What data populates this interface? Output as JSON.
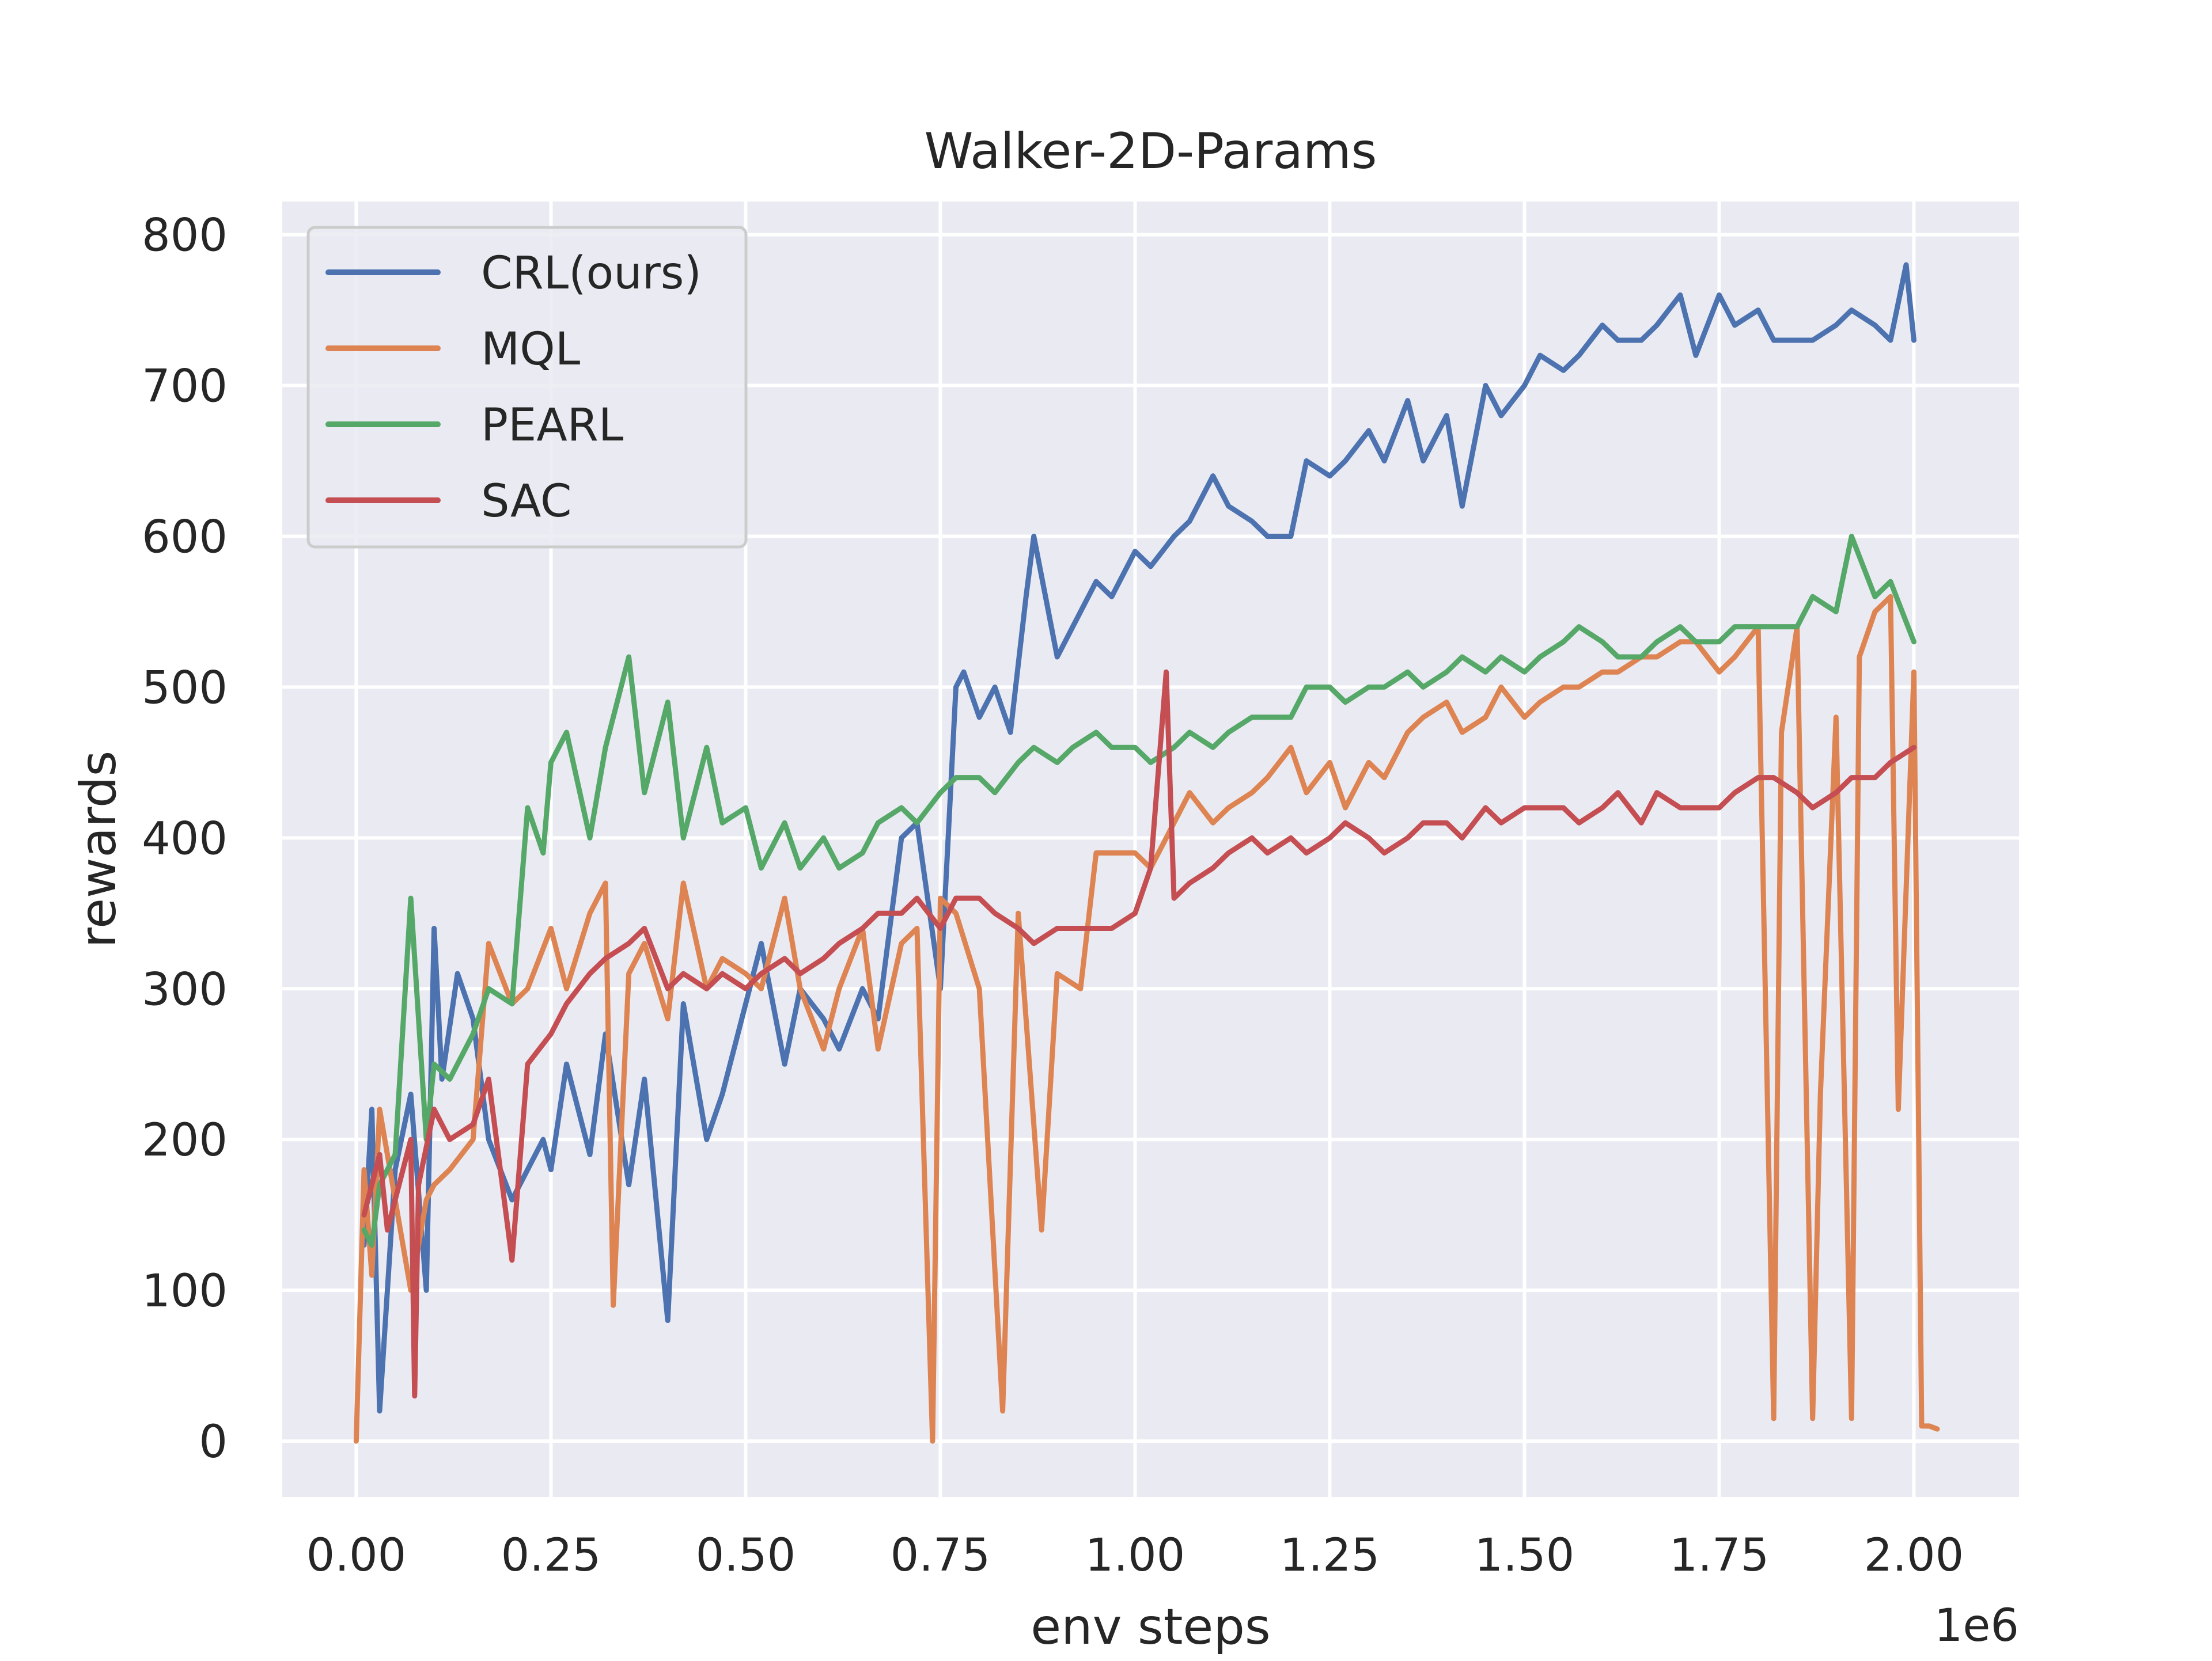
{
  "chart_data": {
    "type": "line",
    "title": "Walker-2D-Params",
    "xlabel": "env steps",
    "ylabel": "rewards",
    "x_offset_label": "1e6",
    "xlim": [
      -0.095,
      2.135
    ],
    "ylim": [
      -37,
      822
    ],
    "x_ticks": [
      0.0,
      0.25,
      0.5,
      0.75,
      1.0,
      1.25,
      1.5,
      1.75,
      2.0
    ],
    "x_tick_labels": [
      "0.00",
      "0.25",
      "0.50",
      "0.75",
      "1.00",
      "1.25",
      "1.50",
      "1.75",
      "2.00"
    ],
    "y_ticks": [
      0,
      100,
      200,
      300,
      400,
      500,
      600,
      700,
      800
    ],
    "y_tick_labels": [
      "0",
      "100",
      "200",
      "300",
      "400",
      "500",
      "600",
      "700",
      "800"
    ],
    "grid": true,
    "legend_position": "upper-left",
    "background": "#eaeaf2",
    "series": [
      {
        "name": "CRL(ours)",
        "color": "#4c72b0",
        "x": [
          0.01,
          0.02,
          0.03,
          0.05,
          0.07,
          0.09,
          0.1,
          0.11,
          0.13,
          0.15,
          0.17,
          0.2,
          0.22,
          0.24,
          0.25,
          0.27,
          0.3,
          0.32,
          0.35,
          0.37,
          0.4,
          0.42,
          0.45,
          0.47,
          0.5,
          0.52,
          0.55,
          0.57,
          0.6,
          0.62,
          0.65,
          0.67,
          0.7,
          0.72,
          0.75,
          0.77,
          0.78,
          0.8,
          0.82,
          0.84,
          0.86,
          0.87,
          0.9,
          0.92,
          0.95,
          0.97,
          1.0,
          1.02,
          1.05,
          1.07,
          1.1,
          1.12,
          1.15,
          1.17,
          1.2,
          1.22,
          1.25,
          1.27,
          1.3,
          1.32,
          1.35,
          1.37,
          1.4,
          1.42,
          1.45,
          1.47,
          1.5,
          1.52,
          1.55,
          1.57,
          1.6,
          1.62,
          1.65,
          1.67,
          1.7,
          1.72,
          1.75,
          1.77,
          1.8,
          1.82,
          1.85,
          1.87,
          1.9,
          1.92,
          1.95,
          1.97,
          1.99,
          2.0
        ],
        "y": [
          130,
          220,
          20,
          180,
          230,
          100,
          340,
          240,
          310,
          280,
          200,
          160,
          180,
          200,
          180,
          250,
          190,
          270,
          170,
          240,
          80,
          290,
          200,
          230,
          290,
          330,
          250,
          300,
          280,
          260,
          300,
          280,
          400,
          410,
          300,
          500,
          510,
          480,
          500,
          470,
          560,
          600,
          520,
          540,
          570,
          560,
          590,
          580,
          600,
          610,
          640,
          620,
          610,
          600,
          600,
          650,
          640,
          650,
          670,
          650,
          690,
          650,
          680,
          620,
          700,
          680,
          700,
          720,
          710,
          720,
          740,
          730,
          730,
          740,
          760,
          720,
          760,
          740,
          750,
          730,
          730,
          730,
          740,
          750,
          740,
          730,
          780,
          730
        ]
      },
      {
        "name": "MQL",
        "color": "#dd8452",
        "x": [
          0.0,
          0.01,
          0.02,
          0.03,
          0.05,
          0.07,
          0.09,
          0.1,
          0.12,
          0.15,
          0.17,
          0.2,
          0.22,
          0.25,
          0.27,
          0.3,
          0.32,
          0.33,
          0.35,
          0.37,
          0.4,
          0.42,
          0.45,
          0.47,
          0.5,
          0.52,
          0.55,
          0.57,
          0.6,
          0.62,
          0.65,
          0.67,
          0.7,
          0.72,
          0.74,
          0.75,
          0.77,
          0.8,
          0.83,
          0.85,
          0.88,
          0.9,
          0.93,
          0.95,
          1.0,
          1.02,
          1.05,
          1.07,
          1.1,
          1.12,
          1.15,
          1.17,
          1.2,
          1.22,
          1.25,
          1.27,
          1.3,
          1.32,
          1.35,
          1.37,
          1.4,
          1.42,
          1.45,
          1.47,
          1.5,
          1.52,
          1.55,
          1.57,
          1.6,
          1.62,
          1.65,
          1.67,
          1.7,
          1.72,
          1.75,
          1.77,
          1.8,
          1.82,
          1.83,
          1.85,
          1.87,
          1.88,
          1.9,
          1.92,
          1.93,
          1.95,
          1.97,
          1.98,
          2.0,
          2.01,
          2.02,
          2.03
        ],
        "y": [
          0,
          180,
          110,
          220,
          160,
          100,
          160,
          170,
          180,
          200,
          330,
          290,
          300,
          340,
          300,
          350,
          370,
          90,
          310,
          330,
          280,
          370,
          300,
          320,
          310,
          300,
          360,
          300,
          260,
          300,
          340,
          260,
          330,
          340,
          0,
          360,
          350,
          300,
          20,
          350,
          140,
          310,
          300,
          390,
          390,
          380,
          410,
          430,
          410,
          420,
          430,
          440,
          460,
          430,
          450,
          420,
          450,
          440,
          470,
          480,
          490,
          470,
          480,
          500,
          480,
          490,
          500,
          500,
          510,
          510,
          520,
          520,
          530,
          530,
          510,
          520,
          540,
          15,
          470,
          540,
          15,
          230,
          480,
          15,
          520,
          550,
          560,
          220,
          510,
          10,
          10,
          8
        ]
      },
      {
        "name": "PEARL",
        "color": "#55a868",
        "x": [
          0.01,
          0.02,
          0.03,
          0.05,
          0.07,
          0.09,
          0.1,
          0.12,
          0.15,
          0.17,
          0.2,
          0.22,
          0.24,
          0.25,
          0.27,
          0.3,
          0.32,
          0.35,
          0.37,
          0.4,
          0.42,
          0.45,
          0.47,
          0.5,
          0.52,
          0.55,
          0.57,
          0.6,
          0.62,
          0.65,
          0.67,
          0.7,
          0.72,
          0.75,
          0.77,
          0.8,
          0.82,
          0.85,
          0.87,
          0.9,
          0.92,
          0.95,
          0.97,
          1.0,
          1.02,
          1.05,
          1.07,
          1.1,
          1.12,
          1.15,
          1.17,
          1.2,
          1.22,
          1.25,
          1.27,
          1.3,
          1.32,
          1.35,
          1.37,
          1.4,
          1.42,
          1.45,
          1.47,
          1.5,
          1.52,
          1.55,
          1.57,
          1.6,
          1.62,
          1.65,
          1.67,
          1.7,
          1.72,
          1.75,
          1.77,
          1.8,
          1.82,
          1.85,
          1.87,
          1.9,
          1.92,
          1.95,
          1.97,
          2.0
        ],
        "y": [
          140,
          130,
          170,
          190,
          360,
          200,
          250,
          240,
          270,
          300,
          290,
          420,
          390,
          450,
          470,
          400,
          460,
          520,
          430,
          490,
          400,
          460,
          410,
          420,
          380,
          410,
          380,
          400,
          380,
          390,
          410,
          420,
          410,
          430,
          440,
          440,
          430,
          450,
          460,
          450,
          460,
          470,
          460,
          460,
          450,
          460,
          470,
          460,
          470,
          480,
          480,
          480,
          500,
          500,
          490,
          500,
          500,
          510,
          500,
          510,
          520,
          510,
          520,
          510,
          520,
          530,
          540,
          530,
          520,
          520,
          530,
          540,
          530,
          530,
          540,
          540,
          540,
          540,
          560,
          550,
          600,
          560,
          570,
          530
        ]
      },
      {
        "name": "SAC",
        "color": "#c44e52",
        "x": [
          0.01,
          0.02,
          0.03,
          0.04,
          0.05,
          0.07,
          0.075,
          0.08,
          0.1,
          0.12,
          0.15,
          0.17,
          0.2,
          0.22,
          0.25,
          0.27,
          0.3,
          0.32,
          0.35,
          0.37,
          0.4,
          0.42,
          0.45,
          0.47,
          0.5,
          0.52,
          0.55,
          0.57,
          0.6,
          0.62,
          0.65,
          0.67,
          0.7,
          0.72,
          0.75,
          0.77,
          0.8,
          0.82,
          0.85,
          0.87,
          0.9,
          0.92,
          0.95,
          0.97,
          1.0,
          1.02,
          1.04,
          1.05,
          1.07,
          1.1,
          1.12,
          1.15,
          1.17,
          1.2,
          1.22,
          1.25,
          1.27,
          1.3,
          1.32,
          1.35,
          1.37,
          1.4,
          1.42,
          1.45,
          1.47,
          1.5,
          1.52,
          1.55,
          1.57,
          1.6,
          1.62,
          1.65,
          1.67,
          1.7,
          1.72,
          1.75,
          1.77,
          1.8,
          1.82,
          1.85,
          1.87,
          1.9,
          1.92,
          1.95,
          1.97,
          2.0
        ],
        "y": [
          150,
          170,
          190,
          140,
          160,
          200,
          30,
          170,
          220,
          200,
          210,
          240,
          120,
          250,
          270,
          290,
          310,
          320,
          330,
          340,
          300,
          310,
          300,
          310,
          300,
          310,
          320,
          310,
          320,
          330,
          340,
          350,
          350,
          360,
          340,
          360,
          360,
          350,
          340,
          330,
          340,
          340,
          340,
          340,
          350,
          380,
          510,
          360,
          370,
          380,
          390,
          400,
          390,
          400,
          390,
          400,
          410,
          400,
          390,
          400,
          410,
          410,
          400,
          420,
          410,
          420,
          420,
          420,
          410,
          420,
          430,
          410,
          430,
          420,
          420,
          420,
          430,
          440,
          440,
          430,
          420,
          430,
          440,
          440,
          450,
          460
        ]
      }
    ]
  }
}
